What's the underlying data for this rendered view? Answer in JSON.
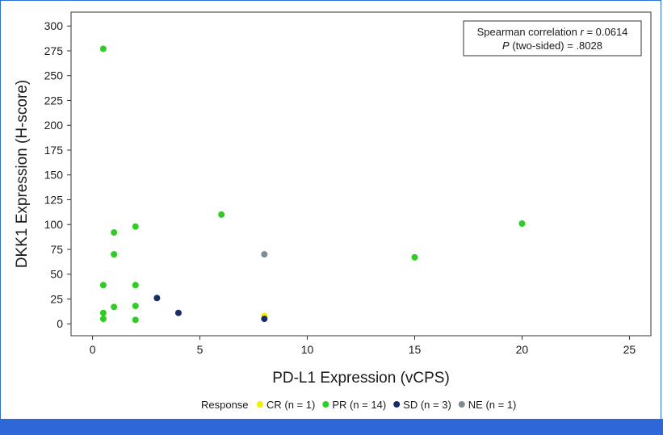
{
  "chart_data": {
    "type": "scatter",
    "xlabel": "PD-L1 Expression (vCPS)",
    "ylabel": "DKK1 Expression (H-score)",
    "xlim": [
      -1,
      26
    ],
    "ylim": [
      -12,
      314
    ],
    "x_ticks": [
      0,
      5,
      10,
      15,
      20,
      25
    ],
    "y_ticks": [
      0,
      25,
      50,
      75,
      100,
      125,
      150,
      175,
      200,
      225,
      250,
      275,
      300
    ],
    "grid": false,
    "annotation": {
      "line1_prefix": "Spearman correlation ",
      "line1_var": "r",
      "line1_value": " = 0.0614",
      "line2_var": "P",
      "line2_value": " (two-sided) = .8028"
    },
    "legend": {
      "title": "Response",
      "placement": "bottom-center",
      "entries": [
        {
          "key": "CR",
          "label": "CR (n = 1)",
          "color": "#f2ee00"
        },
        {
          "key": "PR",
          "label": "PR (n = 14)",
          "color": "#2ecc24"
        },
        {
          "key": "SD",
          "label": "SD (n = 3)",
          "color": "#1a2d6b"
        },
        {
          "key": "NE",
          "label": "NE (n = 1)",
          "color": "#7f8c93"
        }
      ]
    },
    "series": [
      {
        "name": "CR",
        "color": "#f2ee00",
        "points": [
          [
            8,
            8
          ]
        ]
      },
      {
        "name": "PR",
        "color": "#2ecc24",
        "points": [
          [
            0.5,
            277
          ],
          [
            0.5,
            39
          ],
          [
            0.5,
            11
          ],
          [
            0.5,
            5
          ],
          [
            1,
            92
          ],
          [
            1,
            70
          ],
          [
            1,
            17
          ],
          [
            2,
            98
          ],
          [
            2,
            39
          ],
          [
            2,
            18
          ],
          [
            2,
            4
          ],
          [
            6,
            110
          ],
          [
            15,
            67
          ],
          [
            20,
            101
          ]
        ]
      },
      {
        "name": "SD",
        "color": "#1a2d6b",
        "points": [
          [
            3,
            26
          ],
          [
            4,
            11
          ],
          [
            8,
            5
          ]
        ]
      },
      {
        "name": "NE",
        "color": "#7f8c93",
        "points": [
          [
            8,
            70
          ]
        ]
      }
    ]
  }
}
